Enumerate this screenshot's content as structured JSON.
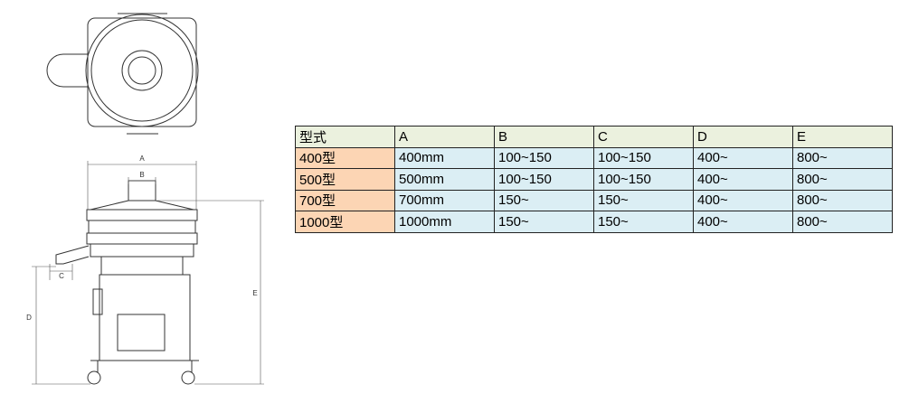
{
  "drawing": {
    "labels": {
      "a": "A",
      "b": "B",
      "c": "C",
      "d": "D",
      "e": "E"
    }
  },
  "table": {
    "header": [
      "型式",
      "A",
      "B",
      "C",
      "D",
      "E"
    ],
    "rows": [
      [
        "400型",
        "400mm",
        "100~150",
        "100~150",
        "400~",
        "800~"
      ],
      [
        "500型",
        "500mm",
        "100~150",
        "100~150",
        "400~",
        "800~"
      ],
      [
        "700型",
        "700mm",
        "150~",
        "150~",
        "400~",
        "800~"
      ],
      [
        "1000型",
        "1000mm",
        "150~",
        "150~",
        "400~",
        "800~"
      ]
    ]
  }
}
